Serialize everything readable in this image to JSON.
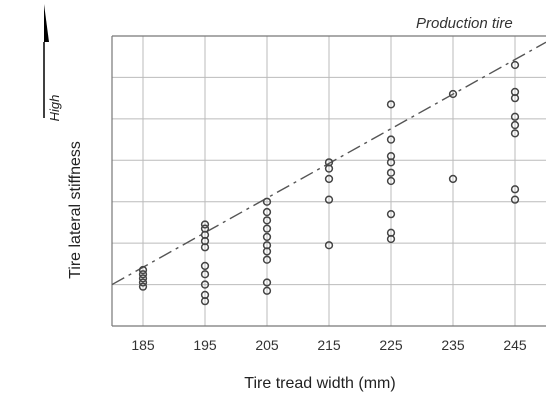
{
  "chart_data": {
    "type": "scatter",
    "title": "",
    "xlabel": "Tire tread width (mm)",
    "ylabel": "Tire lateral stiffness",
    "high_label": "High",
    "legend_label": "Production tire",
    "x_ticks": [
      185,
      195,
      205,
      215,
      225,
      235,
      245
    ],
    "xlim": [
      180,
      250
    ],
    "ylim": [
      0,
      7
    ],
    "y_ticks_shown": false,
    "grid": true,
    "marker": "open-circle",
    "points": [
      {
        "x": 185,
        "y": 1.35
      },
      {
        "x": 185,
        "y": 1.25
      },
      {
        "x": 185,
        "y": 1.15
      },
      {
        "x": 185,
        "y": 1.05
      },
      {
        "x": 185,
        "y": 0.95
      },
      {
        "x": 195,
        "y": 2.45
      },
      {
        "x": 195,
        "y": 2.35
      },
      {
        "x": 195,
        "y": 2.2
      },
      {
        "x": 195,
        "y": 2.05
      },
      {
        "x": 195,
        "y": 1.9
      },
      {
        "x": 195,
        "y": 1.45
      },
      {
        "x": 195,
        "y": 1.25
      },
      {
        "x": 195,
        "y": 1.0
      },
      {
        "x": 195,
        "y": 0.75
      },
      {
        "x": 195,
        "y": 0.6
      },
      {
        "x": 205,
        "y": 3.0
      },
      {
        "x": 205,
        "y": 2.75
      },
      {
        "x": 205,
        "y": 2.55
      },
      {
        "x": 205,
        "y": 2.35
      },
      {
        "x": 205,
        "y": 2.15
      },
      {
        "x": 205,
        "y": 1.95
      },
      {
        "x": 205,
        "y": 1.8
      },
      {
        "x": 205,
        "y": 1.6
      },
      {
        "x": 205,
        "y": 1.05
      },
      {
        "x": 205,
        "y": 0.85
      },
      {
        "x": 215,
        "y": 3.95
      },
      {
        "x": 215,
        "y": 3.8
      },
      {
        "x": 215,
        "y": 3.55
      },
      {
        "x": 215,
        "y": 3.05
      },
      {
        "x": 215,
        "y": 1.95
      },
      {
        "x": 225,
        "y": 5.35
      },
      {
        "x": 225,
        "y": 4.5
      },
      {
        "x": 225,
        "y": 4.1
      },
      {
        "x": 225,
        "y": 3.95
      },
      {
        "x": 225,
        "y": 3.7
      },
      {
        "x": 225,
        "y": 3.5
      },
      {
        "x": 225,
        "y": 2.7
      },
      {
        "x": 225,
        "y": 2.25
      },
      {
        "x": 225,
        "y": 2.1
      },
      {
        "x": 235,
        "y": 5.6
      },
      {
        "x": 235,
        "y": 3.55
      },
      {
        "x": 245,
        "y": 6.3
      },
      {
        "x": 245,
        "y": 5.65
      },
      {
        "x": 245,
        "y": 5.5
      },
      {
        "x": 245,
        "y": 5.05
      },
      {
        "x": 245,
        "y": 4.85
      },
      {
        "x": 245,
        "y": 4.65
      },
      {
        "x": 245,
        "y": 3.3
      },
      {
        "x": 245,
        "y": 3.05
      }
    ],
    "trend_line": {
      "style": "dash-dot",
      "from": {
        "x": 180,
        "y": 1.0
      },
      "to": {
        "x": 250,
        "y": 6.85
      }
    },
    "colors": {
      "line": "#555555",
      "grid": "#bbbbbb",
      "marker": "#444444",
      "frame": "#777777"
    }
  }
}
